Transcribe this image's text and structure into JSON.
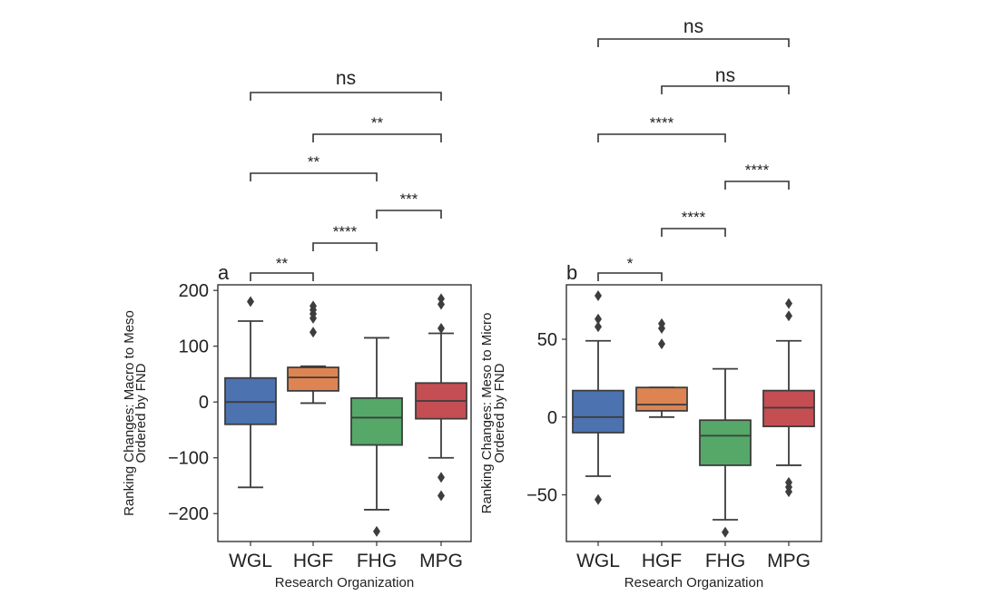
{
  "xlabel": "Research Organization",
  "categories": [
    "WGL",
    "HGF",
    "FHG",
    "MPG"
  ],
  "colors": [
    "#4c72b0",
    "#dd8452",
    "#55a868",
    "#c44e52"
  ],
  "chart_data": [
    {
      "type": "box",
      "panel_label": "a",
      "ylabel": [
        "Ranking Changes: Macro to Meso",
        "Ordered by FND"
      ],
      "ylim": [
        -250,
        210
      ],
      "yticks": [
        200,
        100,
        0,
        -100,
        -200
      ],
      "ytick_labels": [
        "200",
        "100",
        "0",
        "−100",
        "−200"
      ],
      "series": [
        {
          "category": "WGL",
          "whisker_low": -153,
          "q1": -40,
          "median": 0,
          "q3": 43,
          "whisker_high": 145,
          "fliers": [
            180
          ]
        },
        {
          "category": "HGF",
          "whisker_low": -2,
          "q1": 20,
          "median": 44,
          "q3": 62,
          "whisker_high": 64,
          "fliers": [
            125,
            150,
            158,
            165,
            172
          ]
        },
        {
          "category": "FHG",
          "whisker_low": -193,
          "q1": -77,
          "median": -28,
          "q3": 7,
          "whisker_high": 115,
          "fliers": [
            -232
          ]
        },
        {
          "category": "MPG",
          "whisker_low": -100,
          "q1": -30,
          "median": 2,
          "q3": 34,
          "whisker_high": 123,
          "fliers": [
            132,
            175,
            185,
            -135,
            -168
          ]
        }
      ],
      "significance": [
        {
          "from": "WGL",
          "to": "HGF",
          "label": "**"
        },
        {
          "from": "HGF",
          "to": "FHG",
          "label": "****"
        },
        {
          "from": "FHG",
          "to": "MPG",
          "label": "***"
        },
        {
          "from": "WGL",
          "to": "FHG",
          "label": "**"
        },
        {
          "from": "HGF",
          "to": "MPG",
          "label": "**"
        },
        {
          "from": "WGL",
          "to": "MPG",
          "label": "ns"
        }
      ]
    },
    {
      "type": "box",
      "panel_label": "b",
      "ylabel": [
        "Ranking Changes: Meso to Micro",
        "Ordered by FND"
      ],
      "ylim": [
        -80,
        85
      ],
      "yticks": [
        50,
        0,
        -50
      ],
      "ytick_labels": [
        "50",
        "0",
        "−50"
      ],
      "series": [
        {
          "category": "WGL",
          "whisker_low": -38,
          "q1": -10,
          "median": 0,
          "q3": 17,
          "whisker_high": 49,
          "fliers": [
            -53,
            58,
            63,
            78
          ]
        },
        {
          "category": "HGF",
          "whisker_low": 0,
          "q1": 4,
          "median": 8,
          "q3": 19,
          "whisker_high": 19,
          "fliers": [
            47,
            57,
            60
          ]
        },
        {
          "category": "FHG",
          "whisker_low": -66,
          "q1": -31,
          "median": -12,
          "q3": -2,
          "whisker_high": 31,
          "fliers": [
            -74
          ]
        },
        {
          "category": "MPG",
          "whisker_low": -31,
          "q1": -6,
          "median": 6,
          "q3": 17,
          "whisker_high": 49,
          "fliers": [
            -42,
            -45,
            -48,
            65,
            73
          ]
        }
      ],
      "significance": [
        {
          "from": "WGL",
          "to": "HGF",
          "label": "*"
        },
        {
          "from": "HGF",
          "to": "FHG",
          "label": "****"
        },
        {
          "from": "FHG",
          "to": "MPG",
          "label": "****"
        },
        {
          "from": "WGL",
          "to": "FHG",
          "label": "****"
        },
        {
          "from": "HGF",
          "to": "MPG",
          "label": "ns"
        },
        {
          "from": "WGL",
          "to": "MPG",
          "label": "ns"
        }
      ]
    }
  ]
}
